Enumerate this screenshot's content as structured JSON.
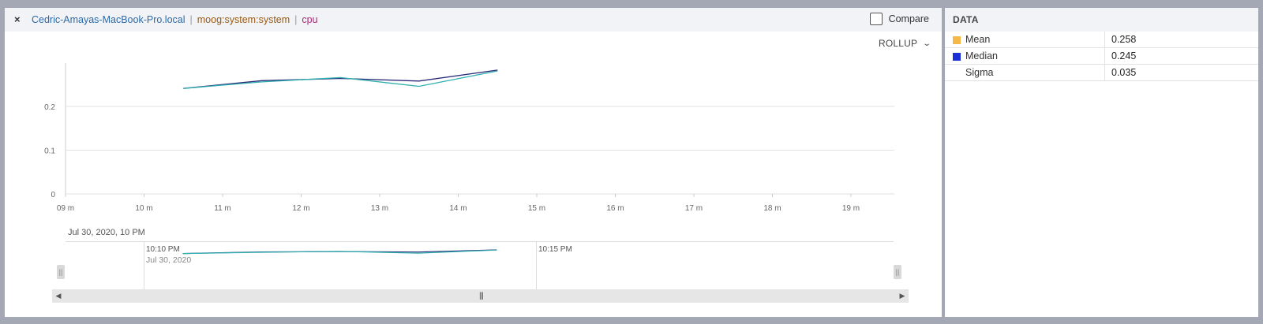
{
  "header": {
    "close_label": "×",
    "host": "Cedric-Amayas-MacBook-Pro.local",
    "separator": "|",
    "source": "moog:system:system",
    "metric": "cpu",
    "compare_label": "Compare"
  },
  "rollup_label": "ROLLUP",
  "chart_data": {
    "type": "line",
    "x_ticks": [
      "09 m",
      "10 m",
      "11 m",
      "12 m",
      "13 m",
      "14 m",
      "15 m",
      "16 m",
      "17 m",
      "18 m",
      "19 m"
    ],
    "y_ticks": [
      "0",
      "0.1",
      "0.2"
    ],
    "ylim": [
      0,
      0.3
    ],
    "x_range_minutes": [
      9,
      19.5
    ],
    "grid": true,
    "legend": "none",
    "series": [
      {
        "color": "#2b2a7a",
        "x": [
          10.5,
          11.5,
          12.5,
          13.5,
          14.5
        ],
        "y": [
          0.241,
          0.259,
          0.264,
          0.258,
          0.283
        ]
      },
      {
        "color": "#2fb0b0",
        "x": [
          10.5,
          11.5,
          12.5,
          13.5,
          14.5
        ],
        "y": [
          0.241,
          0.256,
          0.266,
          0.246,
          0.281
        ]
      }
    ]
  },
  "date_label": "Jul 30, 2020, 10 PM",
  "navigator": {
    "label_1_time": "10:10 PM",
    "label_1_date": "Jul 30, 2020",
    "label_2_time": "10:15 PM",
    "handle_glyph": "||",
    "scroll_left": "◀",
    "scroll_right": "▶",
    "scroll_grip": "|||"
  },
  "data_panel": {
    "title": "DATA",
    "rows": [
      {
        "name": "Mean",
        "value": "0.258",
        "color": "#f5b94a"
      },
      {
        "name": "Median",
        "value": "0.245",
        "color": "#1a2fd6"
      },
      {
        "name": "Sigma",
        "value": "0.035",
        "color": ""
      }
    ]
  }
}
